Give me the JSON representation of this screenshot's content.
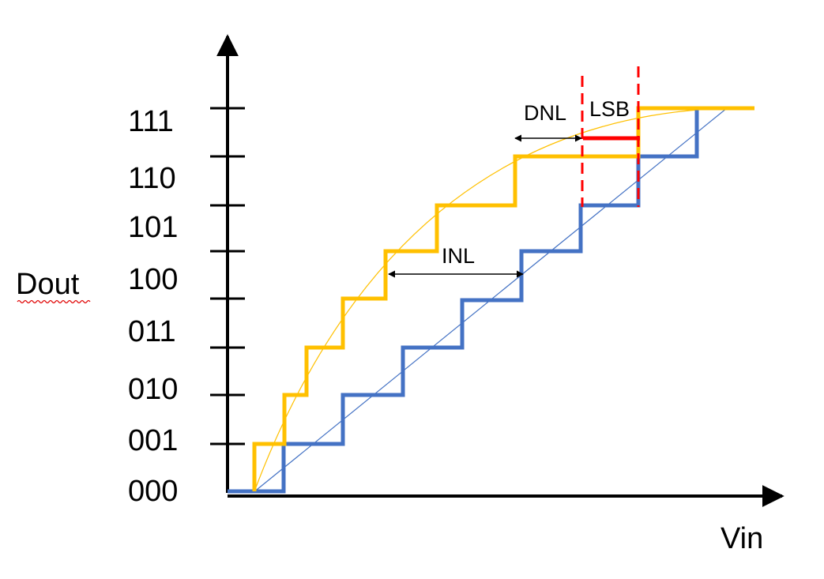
{
  "diagram": {
    "y_axis_title": "Dout",
    "x_axis_title": "Vin",
    "codes": [
      "000",
      "001",
      "010",
      "011",
      "100",
      "101",
      "110",
      "111"
    ],
    "annotations": {
      "inl": "INL",
      "dnl": "DNL",
      "lsb": "LSB"
    },
    "colors": {
      "ideal": "#4472c4",
      "actual": "#ffc000",
      "marker": "#ff0000",
      "axis": "#000000"
    }
  }
}
